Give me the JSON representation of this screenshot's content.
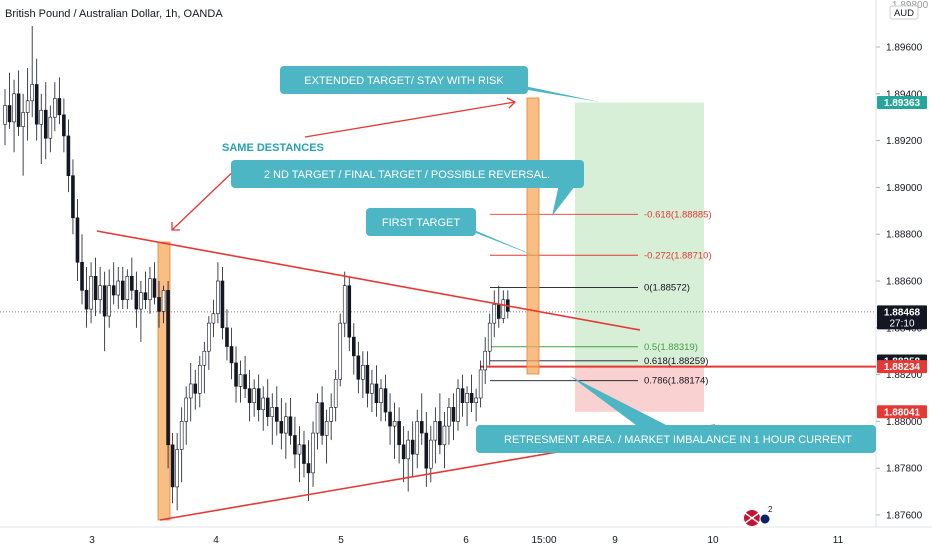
{
  "header": {
    "title": "British Pound / Australian Dollar, 1h, OANDA"
  },
  "price_axis": {
    "currency": "AUD",
    "top_partial": "1.89800",
    "ticks": [
      "1.89600",
      "1.89400",
      "1.89200",
      "1.89000",
      "1.88800",
      "1.88600",
      "1.88400",
      "1.88200",
      "1.88000",
      "1.87800",
      "1.87600"
    ],
    "badges": [
      {
        "label": "1.89363",
        "value": 1.89363,
        "color": "#26a69a"
      },
      {
        "label": "1.88468",
        "value": 1.88468,
        "color": "#131722",
        "sub": "27:10"
      },
      {
        "label": "1.88258",
        "value": 1.88258,
        "color": "#131722"
      },
      {
        "label": "1.88234",
        "value": 1.88234,
        "color": "#e53935"
      },
      {
        "label": "1.88041",
        "value": 1.88041,
        "color": "#e53935"
      }
    ]
  },
  "time_axis": {
    "ticks": [
      {
        "label": "3"
      },
      {
        "label": "4"
      },
      {
        "label": "5"
      },
      {
        "label": "6"
      },
      {
        "label": "15:00"
      },
      {
        "label": "9"
      },
      {
        "label": "10"
      },
      {
        "label": "11"
      }
    ]
  },
  "chart_data": {
    "type": "candlestick",
    "title": "British Pound / Australian Dollar, 1h, OANDA",
    "y_range": [
      1.8755,
      1.8983
    ],
    "last_price": 1.88468,
    "countdown": "27:10",
    "fib_levels": [
      {
        "label": "-0.618(1.88885)",
        "value": 1.88885,
        "color": "#e53935"
      },
      {
        "label": "-0.272(1.88710)",
        "value": 1.8871,
        "color": "#e53935"
      },
      {
        "label": "0(1.88572)",
        "value": 1.88572,
        "color": "#131722"
      },
      {
        "label": "0.5(1.88319)",
        "value": 1.88319,
        "color": "#43a047"
      },
      {
        "label": "0.618(1.88259)",
        "value": 1.88259,
        "color": "#131722"
      },
      {
        "label": "0.786(1.88174)",
        "value": 1.88174,
        "color": "#131722"
      }
    ],
    "position": {
      "target": 1.89363,
      "entry": 1.88234,
      "stop": 1.88041
    },
    "triangle": {
      "upper_line": [
        [
          1.8882
        ],
        [
          1.88475
        ]
      ],
      "lower_line": [
        [
          1.87592
        ],
        [
          1.87992
        ]
      ]
    },
    "annotations": [
      "EXTENDED TARGET/ STAY WITH RISK",
      "SAME DESTANCES",
      "2 ND TARGET / FINAL TARGET /  POSSIBLE REVERSAL.",
      "FIRST TARGET",
      "RETRESMENT AREA. / MARKET IMBALANCE IN 1 HOUR CURRENT"
    ],
    "candles": [
      [
        1.8927,
        1.8942,
        1.8918,
        1.8935
      ],
      [
        1.8935,
        1.8949,
        1.8925,
        1.8928
      ],
      [
        1.8928,
        1.8946,
        1.8915,
        1.894
      ],
      [
        1.894,
        1.895,
        1.8922,
        1.8926
      ],
      [
        1.8926,
        1.894,
        1.8905,
        1.8932
      ],
      [
        1.8932,
        1.8951,
        1.892,
        1.8937
      ],
      [
        1.8937,
        1.8969,
        1.893,
        1.8944
      ],
      [
        1.8944,
        1.8955,
        1.892,
        1.8927
      ],
      [
        1.8927,
        1.894,
        1.891,
        1.8933
      ],
      [
        1.8933,
        1.8945,
        1.8912,
        1.8921
      ],
      [
        1.8921,
        1.8935,
        1.8915,
        1.893
      ],
      [
        1.893,
        1.8945,
        1.8924,
        1.8938
      ],
      [
        1.8938,
        1.8947,
        1.8927,
        1.8931
      ],
      [
        1.8931,
        1.8938,
        1.8915,
        1.8922
      ],
      [
        1.8922,
        1.8929,
        1.8898,
        1.8905
      ],
      [
        1.8905,
        1.8912,
        1.888,
        1.8887
      ],
      [
        1.8887,
        1.8895,
        1.886,
        1.8868
      ],
      [
        1.8868,
        1.888,
        1.885,
        1.8856
      ],
      [
        1.8856,
        1.8866,
        1.884,
        1.8848
      ],
      [
        1.8848,
        1.8868,
        1.8842,
        1.8862
      ],
      [
        1.8862,
        1.887,
        1.8845,
        1.8852
      ],
      [
        1.8852,
        1.8866,
        1.8846,
        1.8858
      ],
      [
        1.8858,
        1.8864,
        1.883,
        1.8845
      ],
      [
        1.8845,
        1.8865,
        1.884,
        1.8858
      ],
      [
        1.8858,
        1.8868,
        1.885,
        1.8854
      ],
      [
        1.8854,
        1.8866,
        1.8848,
        1.886
      ],
      [
        1.886,
        1.8866,
        1.8848,
        1.8852
      ],
      [
        1.8852,
        1.8865,
        1.8848,
        1.8862
      ],
      [
        1.8862,
        1.887,
        1.8852,
        1.8856
      ],
      [
        1.8856,
        1.8864,
        1.884,
        1.8848
      ],
      [
        1.8848,
        1.886,
        1.8834,
        1.8855
      ],
      [
        1.8855,
        1.8864,
        1.8848,
        1.8852
      ],
      [
        1.8852,
        1.8866,
        1.8846,
        1.8861
      ],
      [
        1.8861,
        1.8868,
        1.885,
        1.8853
      ],
      [
        1.8853,
        1.886,
        1.884,
        1.8847
      ],
      [
        1.8847,
        1.8858,
        1.8842,
        1.8856
      ],
      [
        1.8856,
        1.886,
        1.878,
        1.879
      ],
      [
        1.879,
        1.8795,
        1.8765,
        1.8772
      ],
      [
        1.8772,
        1.8795,
        1.8762,
        1.8788
      ],
      [
        1.8788,
        1.8806,
        1.8774,
        1.88
      ],
      [
        1.88,
        1.8815,
        1.879,
        1.881
      ],
      [
        1.881,
        1.8825,
        1.88,
        1.8816
      ],
      [
        1.8816,
        1.8822,
        1.8805,
        1.8812
      ],
      [
        1.8812,
        1.8828,
        1.8806,
        1.8824
      ],
      [
        1.8824,
        1.8834,
        1.8812,
        1.883
      ],
      [
        1.883,
        1.8845,
        1.8822,
        1.8842
      ],
      [
        1.8842,
        1.8852,
        1.8836,
        1.8846
      ],
      [
        1.8846,
        1.8868,
        1.8842,
        1.886
      ],
      [
        1.886,
        1.8866,
        1.8835,
        1.884
      ],
      [
        1.884,
        1.8848,
        1.8826,
        1.8832
      ],
      [
        1.8832,
        1.884,
        1.8818,
        1.8825
      ],
      [
        1.8825,
        1.8832,
        1.8808,
        1.8815
      ],
      [
        1.8815,
        1.8826,
        1.8808,
        1.882
      ],
      [
        1.882,
        1.8828,
        1.881,
        1.8814
      ],
      [
        1.8814,
        1.8822,
        1.88,
        1.8808
      ],
      [
        1.8808,
        1.8818,
        1.8802,
        1.8814
      ],
      [
        1.8814,
        1.882,
        1.88,
        1.8805
      ],
      [
        1.8805,
        1.8815,
        1.8796,
        1.881
      ],
      [
        1.881,
        1.8818,
        1.8798,
        1.8802
      ],
      [
        1.8802,
        1.8812,
        1.879,
        1.8806
      ],
      [
        1.8806,
        1.8815,
        1.8794,
        1.88
      ],
      [
        1.88,
        1.881,
        1.8788,
        1.8795
      ],
      [
        1.8795,
        1.8808,
        1.8784,
        1.8802
      ],
      [
        1.8802,
        1.881,
        1.879,
        1.8794
      ],
      [
        1.8794,
        1.8802,
        1.878,
        1.8786
      ],
      [
        1.8786,
        1.8798,
        1.8774,
        1.879
      ],
      [
        1.879,
        1.8796,
        1.8776,
        1.8782
      ],
      [
        1.8782,
        1.8792,
        1.8766,
        1.8778
      ],
      [
        1.8778,
        1.88,
        1.8772,
        1.8795
      ],
      [
        1.8795,
        1.8812,
        1.8788,
        1.8808
      ],
      [
        1.8808,
        1.8815,
        1.879,
        1.8794
      ],
      [
        1.8794,
        1.8805,
        1.8782,
        1.88
      ],
      [
        1.88,
        1.8812,
        1.8792,
        1.8806
      ],
      [
        1.8806,
        1.8822,
        1.88,
        1.8818
      ],
      [
        1.8818,
        1.8846,
        1.8815,
        1.8842
      ],
      [
        1.8842,
        1.8864,
        1.8836,
        1.8858
      ],
      [
        1.8858,
        1.8862,
        1.883,
        1.8836
      ],
      [
        1.8836,
        1.8842,
        1.882,
        1.8828
      ],
      [
        1.8828,
        1.8834,
        1.8812,
        1.8818
      ],
      [
        1.8818,
        1.883,
        1.881,
        1.8824
      ],
      [
        1.8824,
        1.883,
        1.8806,
        1.8812
      ],
      [
        1.8812,
        1.8822,
        1.8804,
        1.8816
      ],
      [
        1.8816,
        1.8824,
        1.8802,
        1.8808
      ],
      [
        1.8808,
        1.8818,
        1.88,
        1.8814
      ],
      [
        1.8814,
        1.882,
        1.88,
        1.8804
      ],
      [
        1.8804,
        1.8812,
        1.879,
        1.8798
      ],
      [
        1.8798,
        1.8808,
        1.8784,
        1.88
      ],
      [
        1.88,
        1.8806,
        1.8782,
        1.879
      ],
      [
        1.879,
        1.8798,
        1.8774,
        1.8784
      ],
      [
        1.8784,
        1.8796,
        1.877,
        1.8792
      ],
      [
        1.8792,
        1.88,
        1.8776,
        1.8786
      ],
      [
        1.8786,
        1.8805,
        1.878,
        1.88
      ],
      [
        1.88,
        1.8812,
        1.879,
        1.8795
      ],
      [
        1.8795,
        1.8804,
        1.8772,
        1.878
      ],
      [
        1.878,
        1.8798,
        1.8774,
        1.8792
      ],
      [
        1.8792,
        1.8806,
        1.8782,
        1.88
      ],
      [
        1.88,
        1.8812,
        1.8786,
        1.879
      ],
      [
        1.879,
        1.8804,
        1.878,
        1.8798
      ],
      [
        1.8798,
        1.881,
        1.879,
        1.8806
      ],
      [
        1.8806,
        1.8812,
        1.8792,
        1.88
      ],
      [
        1.88,
        1.8818,
        1.8796,
        1.8814
      ],
      [
        1.8814,
        1.882,
        1.8802,
        1.8808
      ],
      [
        1.8808,
        1.8815,
        1.8798,
        1.8812
      ],
      [
        1.8812,
        1.882,
        1.8804,
        1.8808
      ],
      [
        1.8808,
        1.8814,
        1.88,
        1.881
      ],
      [
        1.881,
        1.8826,
        1.8806,
        1.8822
      ],
      [
        1.8822,
        1.8836,
        1.8816,
        1.883
      ],
      [
        1.883,
        1.8846,
        1.8824,
        1.8842
      ],
      [
        1.8842,
        1.8856,
        1.8836,
        1.885
      ],
      [
        1.885,
        1.8858,
        1.884,
        1.8844
      ],
      [
        1.8844,
        1.8856,
        1.8842,
        1.8852
      ],
      [
        1.8852,
        1.8856,
        1.8844,
        1.8847
      ]
    ]
  }
}
